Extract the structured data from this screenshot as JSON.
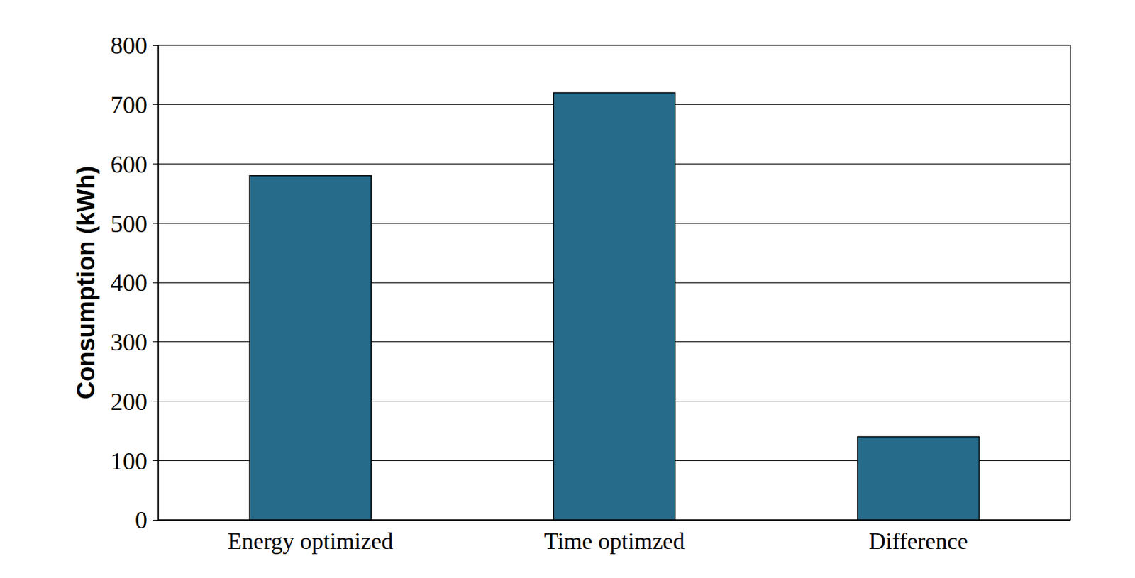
{
  "chart_data": {
    "type": "bar",
    "categories": [
      "Energy optimized",
      "Time optimzed",
      "Difference"
    ],
    "values": [
      580,
      720,
      140
    ],
    "color": "#276b8a",
    "y_label": "Consumption (kWh)",
    "ylim": [
      0,
      800
    ],
    "yticks": [
      0,
      100,
      200,
      300,
      400,
      500,
      600,
      700,
      800
    ],
    "grid": true
  }
}
